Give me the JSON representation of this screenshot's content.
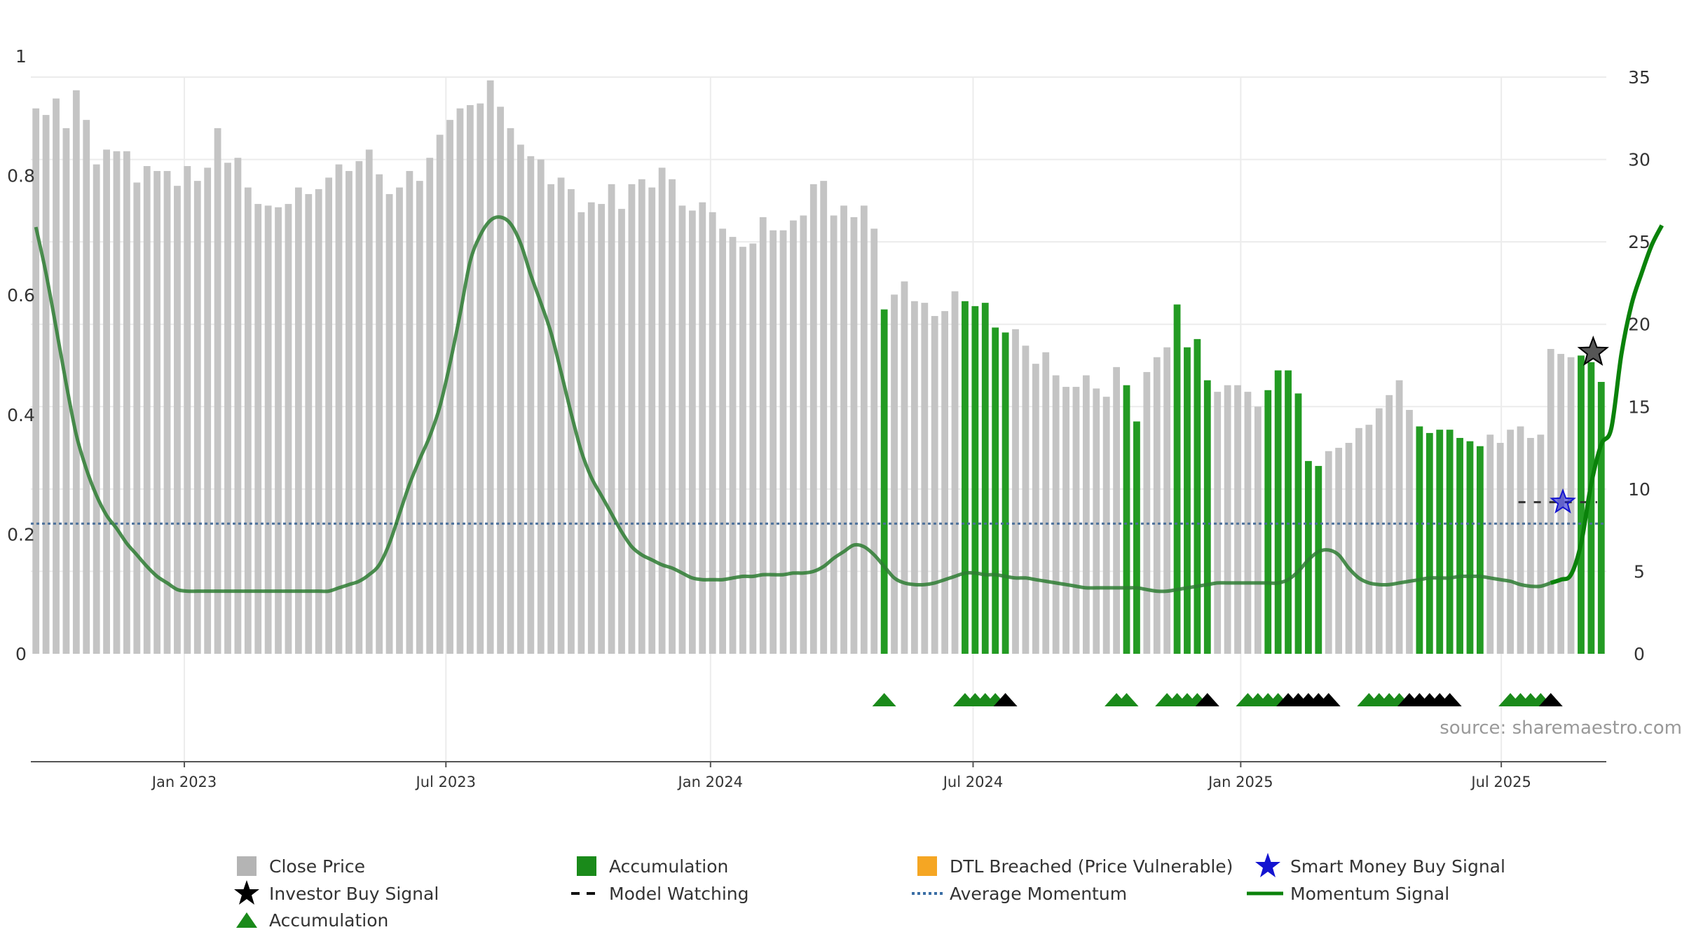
{
  "chart_data": {
    "type": "bar",
    "source": "source: sharemaestro.com",
    "left_axis": {
      "ticks": [
        0,
        0.2,
        0.4,
        0.6,
        0.8,
        1
      ],
      "tick_labels": [
        "0",
        "0.2",
        "0.4",
        "0.6",
        "0.8",
        "1"
      ],
      "ylim": [
        0,
        1
      ]
    },
    "right_axis": {
      "ticks": [
        0,
        5,
        10,
        15,
        20,
        25,
        30,
        35
      ],
      "tick_labels": [
        "0",
        "5",
        "10",
        "15",
        "20",
        "25",
        "30",
        "35"
      ],
      "ylim": [
        0,
        35
      ]
    },
    "x_axis": {
      "tick_labels": [
        "Jan 2023",
        "Jul 2023",
        "Jan 2024",
        "Jul 2024",
        "Jan 2025",
        "Jul 2025"
      ],
      "tick_index": [
        14.7,
        40.6,
        66.8,
        92.8,
        119.3,
        145.1
      ]
    },
    "grid": true,
    "legend_position": "bottom",
    "colors": {
      "close_price": "#c4c4c4",
      "accumulation": "#239b23",
      "accumulation_marker": "#1a8a1a",
      "investor_marker": "#000000",
      "momentum": "#2e7d32",
      "momentum_recent": "#0a820a",
      "average_momentum": "#4a6f9a",
      "model_watching": "#333333",
      "dtl": "#f5a623",
      "smart_money": "#1414d0"
    },
    "close_price": [
      33.1,
      32.7,
      33.7,
      31.9,
      34.2,
      32.4,
      29.7,
      30.6,
      30.5,
      30.5,
      28.6,
      29.6,
      29.3,
      29.3,
      28.4,
      29.6,
      28.7,
      29.5,
      31.9,
      29.8,
      30.1,
      28.3,
      27.3,
      27.2,
      27.1,
      27.3,
      28.3,
      27.9,
      28.2,
      28.9,
      29.7,
      29.3,
      29.9,
      30.6,
      29.1,
      27.9,
      28.3,
      29.3,
      28.7,
      30.1,
      31.5,
      32.4,
      33.1,
      33.3,
      33.4,
      34.8,
      33.2,
      31.9,
      30.9,
      30.2,
      30.0,
      28.5,
      28.9,
      28.2,
      26.8,
      27.4,
      27.3,
      28.5,
      27.0,
      28.5,
      28.8,
      28.3,
      29.5,
      28.8,
      27.2,
      26.9,
      27.4,
      26.8,
      25.8,
      25.3,
      24.7,
      24.9,
      26.5,
      25.7,
      25.7,
      26.3,
      26.6,
      28.5,
      28.7,
      26.6,
      27.2,
      26.5,
      27.2,
      25.8,
      20.9,
      21.8,
      22.6,
      21.4,
      21.3,
      20.5,
      20.8,
      22.0,
      21.4,
      21.1,
      21.3,
      19.8,
      19.5,
      19.7,
      18.7,
      17.6,
      18.3,
      16.9,
      16.2,
      16.2,
      16.9,
      16.1,
      15.6,
      17.4,
      16.3,
      14.1,
      17.1,
      18.0,
      18.6,
      21.2,
      18.6,
      19.1,
      16.6,
      15.9,
      16.3,
      16.3,
      15.9,
      15.0,
      16.0,
      17.2,
      17.2,
      15.8,
      11.7,
      11.4,
      12.3,
      12.5,
      12.8,
      13.7,
      13.9,
      14.9,
      15.7,
      16.6,
      14.8,
      13.8,
      13.4,
      13.6,
      13.6,
      13.1,
      12.9,
      12.6,
      13.3,
      12.8,
      13.6,
      13.8,
      13.1,
      13.3,
      18.5,
      18.2,
      18.0,
      18.1,
      17.7,
      16.5
    ],
    "accumulation_bars": [
      84,
      92,
      93,
      94,
      95,
      96,
      108,
      109,
      113,
      114,
      115,
      116,
      122,
      123,
      124,
      125,
      126,
      127,
      137,
      138,
      139,
      140,
      141,
      142,
      143,
      153,
      154,
      155,
      156,
      157
    ],
    "momentum": [
      25.9,
      23.1,
      19.8,
      16.4,
      13.3,
      11.2,
      9.6,
      8.4,
      7.6,
      6.7,
      6.0,
      5.3,
      4.7,
      4.3,
      3.9,
      3.8,
      3.8,
      3.8,
      3.8,
      3.8,
      3.8,
      3.8,
      3.8,
      3.8,
      3.8,
      3.8,
      3.8,
      3.8,
      3.8,
      3.8,
      4.0,
      4.2,
      4.4,
      4.8,
      5.4,
      6.7,
      8.5,
      10.3,
      11.8,
      13.2,
      15.0,
      17.6,
      20.6,
      23.8,
      25.4,
      26.3,
      26.5,
      26.1,
      24.9,
      23.0,
      21.3,
      19.5,
      17.1,
      14.6,
      12.3,
      10.7,
      9.6,
      8.5,
      7.4,
      6.5,
      6.0,
      5.7,
      5.4,
      5.2,
      4.9,
      4.6,
      4.5,
      4.5,
      4.5,
      4.6,
      4.7,
      4.7,
      4.8,
      4.8,
      4.8,
      4.9,
      4.9,
      5.0,
      5.3,
      5.8,
      6.2,
      6.6,
      6.5,
      6.0,
      5.3,
      4.6,
      4.3,
      4.2,
      4.2,
      4.3,
      4.5,
      4.7,
      4.9,
      4.9,
      4.8,
      4.8,
      4.7,
      4.6,
      4.6,
      4.5,
      4.4,
      4.3,
      4.2,
      4.1,
      4.0,
      4.0,
      4.0,
      4.0,
      4.0,
      4.0,
      3.9,
      3.8,
      3.8,
      3.9,
      4.0,
      4.1,
      4.2,
      4.3,
      4.3,
      4.3,
      4.3,
      4.3,
      4.3,
      4.3,
      4.5,
      5.0,
      5.7,
      6.2,
      6.3,
      6.0,
      5.2,
      4.6,
      4.3,
      4.2,
      4.2,
      4.3,
      4.4,
      4.5,
      4.6,
      4.6,
      4.6,
      4.7,
      4.7,
      4.7,
      4.6,
      4.5,
      4.4,
      4.2,
      4.1,
      4.1,
      4.3,
      4.5,
      4.8,
      6.7,
      10.3,
      12.7,
      13.7,
      18.2,
      21.2,
      23.1,
      24.8,
      26.0
    ],
    "average_momentum": 7.9,
    "model_watching": {
      "value": 9.2,
      "from_index": 146.8,
      "to_index": 154.6
    },
    "investor_buy_signal": {
      "index": 154.2,
      "value": 18.3
    },
    "smart_money_buy_signal": {
      "index": 151.2,
      "value": 9.2
    },
    "accumulation_markers": [
      84,
      92,
      93,
      94,
      95,
      107,
      108,
      112,
      113,
      114,
      115,
      120,
      121,
      122,
      123,
      132,
      133,
      134,
      135,
      146,
      147,
      148,
      149
    ],
    "investor_markers": [
      96,
      116,
      124,
      125,
      126,
      127,
      128,
      136,
      137,
      138,
      139,
      140,
      150
    ],
    "legend": [
      {
        "label": "Close Price",
        "icon": "gray-square"
      },
      {
        "label": "Accumulation",
        "icon": "green-square"
      },
      {
        "label": "DTL Breached (Price Vulnerable)",
        "icon": "orange-square"
      },
      {
        "label": "Smart Money Buy Signal",
        "icon": "blue-star"
      },
      {
        "label": "Investor Buy Signal",
        "icon": "black-star"
      },
      {
        "label": "Model Watching",
        "icon": "black-dashed-line"
      },
      {
        "label": "Average Momentum",
        "icon": "blue-dotted-line"
      },
      {
        "label": "Momentum Signal",
        "icon": "green-line"
      },
      {
        "label": "Accumulation",
        "icon": "green-triangle"
      }
    ]
  }
}
